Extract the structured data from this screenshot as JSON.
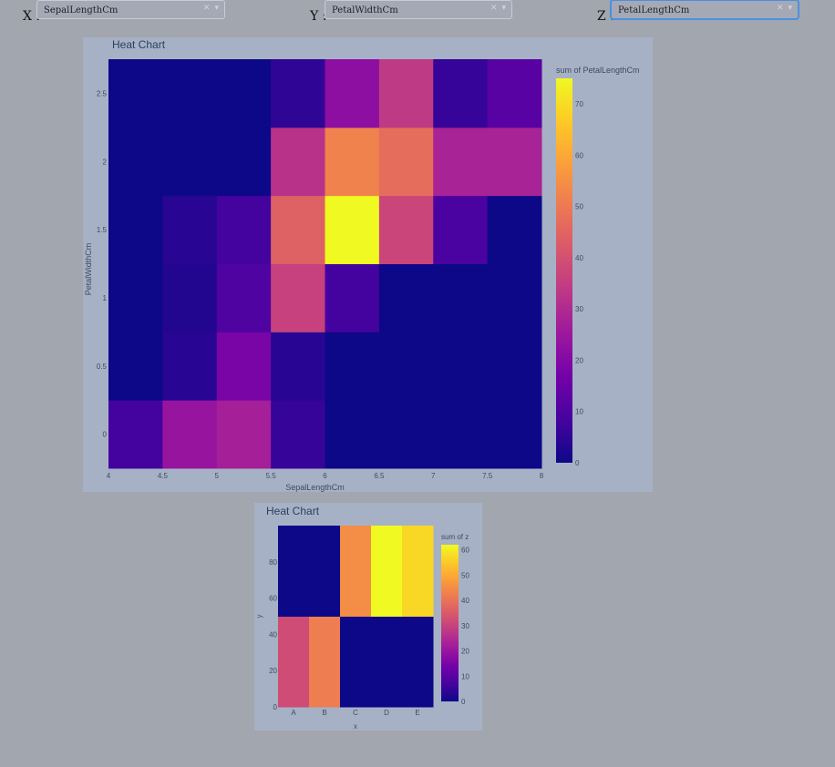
{
  "controls": {
    "x": {
      "label": "X :",
      "value": "SepalLengthCm"
    },
    "y": {
      "label": "Y :",
      "value": "PetalWidthCm"
    },
    "z": {
      "label": "Z :",
      "value": "PetalLengthCm"
    },
    "clear_icon": "close-icon",
    "caret_icon": "caret-down-icon"
  },
  "colorscale": [
    "#0d0887",
    "#46039f",
    "#7201a8",
    "#9c179e",
    "#bd3786",
    "#d8576b",
    "#ed7953",
    "#fb9f3a",
    "#fdca26",
    "#f0f921"
  ],
  "chart_data": [
    {
      "type": "heatmap",
      "title": "Heat Chart",
      "xlabel": "SepalLengthCm",
      "ylabel": "PetalWidthCm",
      "colorbar_title": "sum of PetalLengthCm",
      "x_bins": [
        4,
        4.5,
        5,
        5.5,
        6,
        6.5,
        7,
        7.5,
        8
      ],
      "y_bins": [
        -0.25,
        0.25,
        0.75,
        1.25,
        1.75,
        2.25,
        2.75
      ],
      "x_ticks": [
        "4",
        "4.5",
        "5",
        "5.5",
        "6",
        "6.5",
        "7",
        "7.5",
        "8"
      ],
      "y_ticks": [
        {
          "v": 0,
          "t": "0"
        },
        {
          "v": 0.5,
          "t": "0.5"
        },
        {
          "v": 1,
          "t": "1"
        },
        {
          "v": 1.5,
          "t": "1.5"
        },
        {
          "v": 2,
          "t": "2"
        },
        {
          "v": 2.5,
          "t": "2.5"
        }
      ],
      "z": [
        [
          8,
          24,
          27,
          6,
          0,
          0,
          0,
          0
        ],
        [
          0,
          4,
          18,
          4,
          0,
          0,
          0,
          0
        ],
        [
          0,
          3,
          10,
          36,
          8,
          0,
          0,
          0
        ],
        [
          0,
          4,
          8,
          44,
          75,
          37,
          9,
          0
        ],
        [
          0,
          0,
          0,
          32,
          52,
          47,
          28,
          28
        ],
        [
          0,
          0,
          0,
          5,
          22,
          34,
          6,
          12
        ]
      ],
      "zmin": 0,
      "zmax": 75,
      "colorbar_ticks": [
        0,
        10,
        20,
        30,
        40,
        50,
        60,
        70
      ]
    },
    {
      "type": "heatmap",
      "title": "Heat Chart",
      "xlabel": "x",
      "ylabel": "y",
      "colorbar_title": "sum of z",
      "categories": [
        "A",
        "B",
        "C",
        "D",
        "E"
      ],
      "y_bins": [
        0,
        50,
        100
      ],
      "y_ticks": [
        {
          "v": 0,
          "t": "0"
        },
        {
          "v": 20,
          "t": "20"
        },
        {
          "v": 40,
          "t": "40"
        },
        {
          "v": 60,
          "t": "60"
        },
        {
          "v": 80,
          "t": "80"
        }
      ],
      "z": [
        [
          32,
          42,
          0,
          0,
          0
        ],
        [
          0,
          0,
          45,
          62,
          57
        ]
      ],
      "zmin": 0,
      "zmax": 62,
      "colorbar_ticks": [
        0,
        10,
        20,
        30,
        40,
        50,
        60
      ]
    }
  ]
}
